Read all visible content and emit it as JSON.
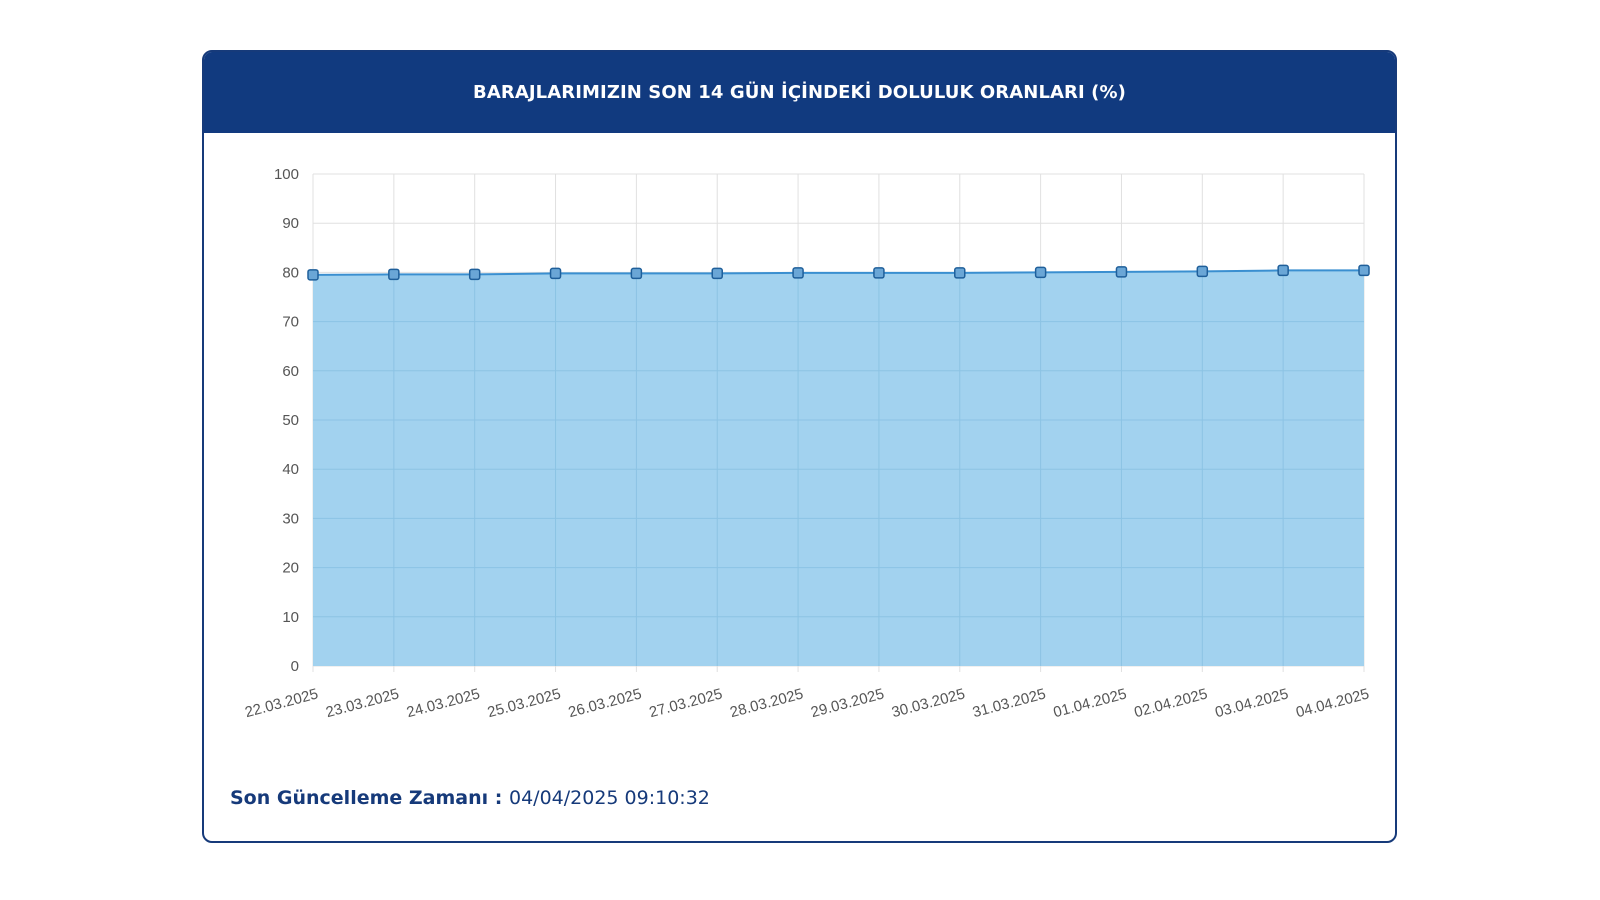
{
  "card": {
    "title": "BARAJLARIMIZIN SON 14 GÜN İÇİNDEKİ DOLULUK ORANLARI (%)"
  },
  "footer": {
    "label": "Son Güncelleme Zamanı : ",
    "value": "04/04/2025 09:10:32"
  },
  "colors": {
    "header": "#113a7f",
    "area_fill": "#9dd0ee",
    "line": "#3a8fd0",
    "point_fill": "#6aa6d6",
    "point_stroke": "#1f5f9a",
    "grid": "#e0e0e0"
  },
  "chart_data": {
    "type": "area",
    "title": "",
    "xlabel": "",
    "ylabel": "",
    "ylim": [
      0,
      100
    ],
    "yticks": [
      0,
      10,
      20,
      30,
      40,
      50,
      60,
      70,
      80,
      90,
      100
    ],
    "grid": true,
    "categories": [
      "22.03.2025",
      "23.03.2025",
      "24.03.2025",
      "25.03.2025",
      "26.03.2025",
      "27.03.2025",
      "28.03.2025",
      "29.03.2025",
      "30.03.2025",
      "31.03.2025",
      "01.04.2025",
      "02.04.2025",
      "03.04.2025",
      "04.04.2025"
    ],
    "series": [
      {
        "values": [
          79.5,
          79.6,
          79.6,
          79.8,
          79.8,
          79.8,
          79.9,
          79.9,
          79.9,
          80.0,
          80.1,
          80.2,
          80.4,
          80.4
        ]
      }
    ]
  }
}
